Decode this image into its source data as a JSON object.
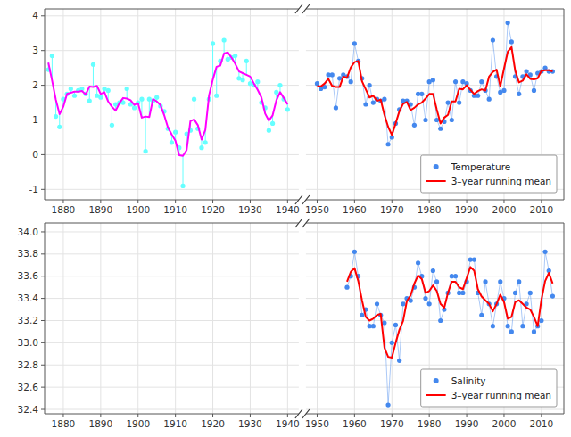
{
  "chart_data": [
    {
      "type": "line",
      "x": [
        1876,
        1877,
        1878,
        1879,
        1880,
        1881,
        1882,
        1883,
        1884,
        1885,
        1886,
        1887,
        1888,
        1889,
        1890,
        1891,
        1892,
        1893,
        1894,
        1895,
        1896,
        1897,
        1898,
        1899,
        1900,
        1901,
        1902,
        1903,
        1904,
        1905,
        1906,
        1907,
        1908,
        1909,
        1910,
        1911,
        1912,
        1913,
        1914,
        1915,
        1916,
        1917,
        1918,
        1919,
        1920,
        1921,
        1922,
        1923,
        1924,
        1925,
        1926,
        1927,
        1928,
        1929,
        1930,
        1931,
        1932,
        1933,
        1934,
        1935,
        1936,
        1937,
        1938,
        1939,
        1940
      ],
      "series": [
        {
          "type": "stem",
          "marker": "circle",
          "color": "#66FFFF",
          "values": [
            2.45,
            2.85,
            1.1,
            0.8,
            1.6,
            1.75,
            1.9,
            1.7,
            1.85,
            1.9,
            1.75,
            1.55,
            2.6,
            1.7,
            1.65,
            1.9,
            1.85,
            0.85,
            1.45,
            1.5,
            1.5,
            1.9,
            1.45,
            1.35,
            1.5,
            1.6,
            0.1,
            1.6,
            1.55,
            1.65,
            1.4,
            1.25,
            0.75,
            0.35,
            0.65,
            0.2,
            -0.9,
            0.6,
            0.7,
            1.6,
            0.75,
            0.2,
            0.35,
            1.6,
            3.2,
            1.7,
            2.7,
            3.3,
            2.75,
            2.8,
            2.85,
            2.2,
            2.15,
            2.7,
            2.05,
            2.0,
            2.1,
            1.5,
            1.35,
            0.7,
            0.9,
            1.8,
            2.0,
            1.6,
            1.3
          ]
        },
        {
          "type": "line",
          "color": "#FF00FF",
          "values": [
            2.65,
            2.1333,
            1.5833,
            1.1667,
            1.3833,
            1.75,
            1.7833,
            1.8167,
            1.8167,
            1.8333,
            1.7333,
            1.9667,
            1.95,
            1.9833,
            1.75,
            1.8,
            1.5333,
            1.3833,
            1.2667,
            1.4833,
            1.6333,
            1.6167,
            1.5667,
            1.4333,
            1.4833,
            1.0667,
            1.1,
            1.0833,
            1.6,
            1.5333,
            1.4333,
            1.1333,
            0.7833,
            0.5833,
            0.4,
            -0.0167,
            -0.0333,
            0.1333,
            0.9667,
            1.0167,
            0.85,
            0.4333,
            0.7167,
            1.7167,
            2.1667,
            2.5333,
            2.5667,
            2.9167,
            2.95,
            2.8,
            2.6167,
            2.4,
            2.35,
            2.3,
            2.25,
            2.05,
            1.8667,
            1.65,
            1.1833,
            0.9833,
            1.1333,
            1.5667,
            1.8,
            1.6333,
            1.45
          ]
        }
      ],
      "xlim": [
        1875,
        1943
      ],
      "ylim": [
        -1.3,
        4.2
      ],
      "xticks": [
        1880,
        1890,
        1900,
        1910,
        1920,
        1930,
        1940
      ],
      "yticks": [
        -1,
        0,
        1,
        2,
        3,
        4
      ],
      "grid": true
    },
    {
      "type": "line",
      "x": [
        1950,
        1951,
        1952,
        1953,
        1954,
        1955,
        1956,
        1957,
        1958,
        1959,
        1960,
        1961,
        1962,
        1963,
        1964,
        1965,
        1966,
        1967,
        1968,
        1969,
        1970,
        1971,
        1972,
        1973,
        1974,
        1975,
        1976,
        1977,
        1978,
        1979,
        1980,
        1981,
        1982,
        1983,
        1984,
        1985,
        1986,
        1987,
        1988,
        1989,
        1990,
        1991,
        1992,
        1993,
        1994,
        1995,
        1996,
        1997,
        1998,
        1999,
        2000,
        2001,
        2002,
        2003,
        2004,
        2005,
        2006,
        2007,
        2008,
        2009,
        2010,
        2011,
        2012,
        2013
      ],
      "series": [
        {
          "name": "Temperature",
          "type": "line",
          "marker": "circle",
          "color": "#4488EE",
          "values": [
            2.05,
            1.9,
            1.95,
            2.3,
            2.3,
            1.35,
            2.2,
            2.3,
            2.25,
            2.1,
            3.2,
            2.7,
            2.2,
            1.45,
            2.0,
            1.5,
            1.6,
            1.55,
            1.6,
            0.3,
            0.5,
            0.9,
            1.3,
            1.55,
            1.55,
            1.45,
            0.85,
            1.75,
            1.75,
            1.0,
            2.1,
            2.15,
            1.0,
            0.75,
            0.95,
            1.5,
            1.0,
            2.1,
            1.5,
            2.1,
            2.05,
            1.85,
            1.7,
            1.7,
            2.1,
            1.85,
            1.6,
            3.3,
            2.25,
            1.8,
            1.85,
            3.8,
            3.25,
            2.25,
            1.75,
            2.25,
            2.4,
            2.3,
            1.85,
            2.35,
            2.4,
            2.5,
            2.4,
            2.4
          ]
        },
        {
          "name": "3–year running mean",
          "type": "line",
          "color": "#FF0000",
          "values": [
            1.975,
            1.9667,
            2.05,
            2.1833,
            1.9833,
            1.95,
            1.95,
            2.25,
            2.2167,
            2.5167,
            2.6667,
            2.7,
            2.1167,
            1.8833,
            1.65,
            1.7,
            1.55,
            1.5833,
            1.15,
            0.8,
            0.5667,
            0.9,
            1.25,
            1.4667,
            1.5167,
            1.2833,
            1.35,
            1.45,
            1.5,
            1.6167,
            1.75,
            1.75,
            1.3,
            0.9,
            1.0667,
            1.15,
            1.5333,
            1.5333,
            1.9,
            1.8833,
            2.0,
            1.8667,
            1.75,
            1.8333,
            1.8833,
            1.85,
            2.25,
            2.3833,
            2.45,
            1.9667,
            2.4833,
            2.9667,
            3.1,
            2.4167,
            2.0833,
            2.1333,
            2.3167,
            2.1833,
            2.1667,
            2.2,
            2.4167,
            2.4333,
            2.4333,
            2.4
          ]
        }
      ],
      "xlim": [
        1947,
        2016
      ],
      "ylim": [
        -1.3,
        4.2
      ],
      "xticks": [
        1950,
        1960,
        1970,
        1980,
        1990,
        2000,
        2010
      ],
      "yticks": [
        -1,
        0,
        1,
        2,
        3,
        4
      ],
      "grid": true,
      "tick_labels": "x",
      "legend": "lower right"
    },
    {
      "type": "line",
      "xlim": [
        1875,
        1943
      ],
      "ylim": [
        32.36,
        34.08
      ],
      "xticks": [
        1880,
        1890,
        1900,
        1910,
        1920,
        1930,
        1940
      ],
      "yticks": [
        32.4,
        32.6,
        32.8,
        {
          "value": 33,
          "label": "33.0"
        },
        33.2,
        33.4,
        33.6,
        33.8,
        {
          "value": 34,
          "label": "34.0"
        }
      ],
      "grid": true
    },
    {
      "type": "line",
      "x": [
        1958,
        1959,
        1960,
        1961,
        1962,
        1963,
        1964,
        1965,
        1966,
        1967,
        1968,
        1969,
        1970,
        1971,
        1972,
        1973,
        1974,
        1975,
        1976,
        1977,
        1978,
        1979,
        1980,
        1981,
        1982,
        1983,
        1984,
        1985,
        1986,
        1987,
        1988,
        1989,
        1990,
        1991,
        1992,
        1993,
        1994,
        1995,
        1996,
        1997,
        1998,
        1999,
        2000,
        2001,
        2002,
        2003,
        2004,
        2005,
        2006,
        2007,
        2008,
        2009,
        2010,
        2011,
        2012,
        2013
      ],
      "series": [
        {
          "name": "Salinity",
          "type": "line",
          "marker": "circle",
          "color": "#4488EE",
          "values": [
            33.5,
            33.6,
            33.82,
            33.6,
            33.25,
            33.3,
            33.15,
            33.15,
            33.35,
            33.25,
            33.18,
            32.44,
            33.0,
            33.16,
            32.84,
            33.35,
            33.4,
            33.38,
            33.5,
            33.72,
            33.6,
            33.4,
            33.35,
            33.65,
            33.55,
            33.2,
            33.3,
            33.45,
            33.6,
            33.6,
            33.45,
            33.45,
            33.55,
            33.75,
            33.75,
            33.45,
            33.25,
            33.55,
            33.35,
            33.15,
            33.35,
            33.55,
            33.4,
            33.15,
            33.1,
            33.45,
            33.55,
            33.15,
            33.35,
            33.45,
            33.1,
            33.15,
            33.2,
            33.82,
            33.65,
            33.42
          ]
        },
        {
          "name": "3–year running mean",
          "type": "line",
          "color": "#FF0000",
          "values": [
            33.55,
            33.64,
            33.6733,
            33.5567,
            33.3833,
            33.2333,
            33.2,
            33.2167,
            33.25,
            33.26,
            32.9567,
            32.8733,
            32.8667,
            33,
            33.1167,
            33.1967,
            33.3767,
            33.4267,
            33.5333,
            33.6067,
            33.5733,
            33.45,
            33.4667,
            33.5167,
            33.4667,
            33.35,
            33.3167,
            33.45,
            33.55,
            33.55,
            33.5,
            33.4833,
            33.5833,
            33.6833,
            33.65,
            33.4833,
            33.4167,
            33.3833,
            33.35,
            33.2833,
            33.35,
            33.4333,
            33.3667,
            33.2167,
            33.2333,
            33.3667,
            33.3833,
            33.35,
            33.3167,
            33.3,
            33.2333,
            33.15,
            33.39,
            33.5567,
            33.63,
            33.535
          ]
        }
      ],
      "xlim": [
        1947,
        2016
      ],
      "ylim": [
        32.36,
        34.08
      ],
      "xticks": [
        1950,
        1960,
        1970,
        1980,
        1990,
        2000,
        2010
      ],
      "yticks": [
        32.4,
        32.6,
        32.8,
        {
          "value": 33,
          "label": "33.0"
        },
        33.2,
        33.4,
        33.6,
        33.8,
        {
          "value": 34,
          "label": "34.0"
        }
      ],
      "grid": true,
      "tick_labels": "x",
      "legend": "lower right"
    }
  ]
}
